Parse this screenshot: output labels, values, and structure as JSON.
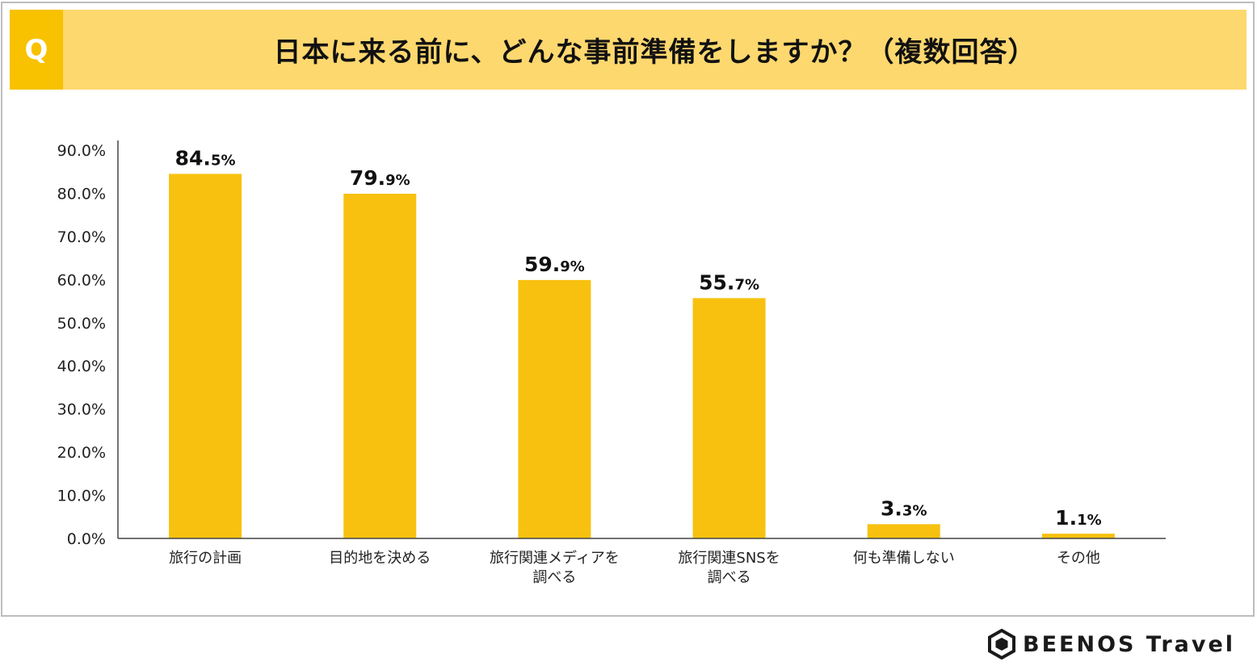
{
  "header": {
    "q_label": "Q",
    "title": "日本に来る前に、どんな事前準備をしますか？（複数回答）"
  },
  "logo": {
    "text": "BEENOS Travel",
    "icon": "hexagon-logo-icon"
  },
  "colors": {
    "bar": "#f8c10f",
    "header_bg": "#fdd86f",
    "q_bg": "#f8c200",
    "axis": "#444444"
  },
  "chart_data": {
    "type": "bar",
    "title": "日本に来る前に、どんな事前準備をしますか？（複数回答）",
    "categories": [
      [
        "旅行の計画"
      ],
      [
        "目的地を決める"
      ],
      [
        "旅行関連メディアを",
        "調べる"
      ],
      [
        "旅行関連SNSを",
        "調べる"
      ],
      [
        "何も準備しない"
      ],
      [
        "その他"
      ]
    ],
    "values": [
      84.5,
      79.9,
      59.9,
      55.7,
      3.3,
      1.1
    ],
    "value_labels": [
      {
        "int": "84.",
        "dec": "5%"
      },
      {
        "int": "79.",
        "dec": "9%"
      },
      {
        "int": "59.",
        "dec": "9%"
      },
      {
        "int": "55.",
        "dec": "7%"
      },
      {
        "int": "3.",
        "dec": "3%"
      },
      {
        "int": "1.",
        "dec": "1%"
      }
    ],
    "y_ticks": [
      "0.0%",
      "10.0%",
      "20.0%",
      "30.0%",
      "40.0%",
      "50.0%",
      "60.0%",
      "70.0%",
      "80.0%",
      "90.0%"
    ],
    "ylim": [
      0,
      90
    ],
    "grid": false,
    "legend": "none"
  }
}
